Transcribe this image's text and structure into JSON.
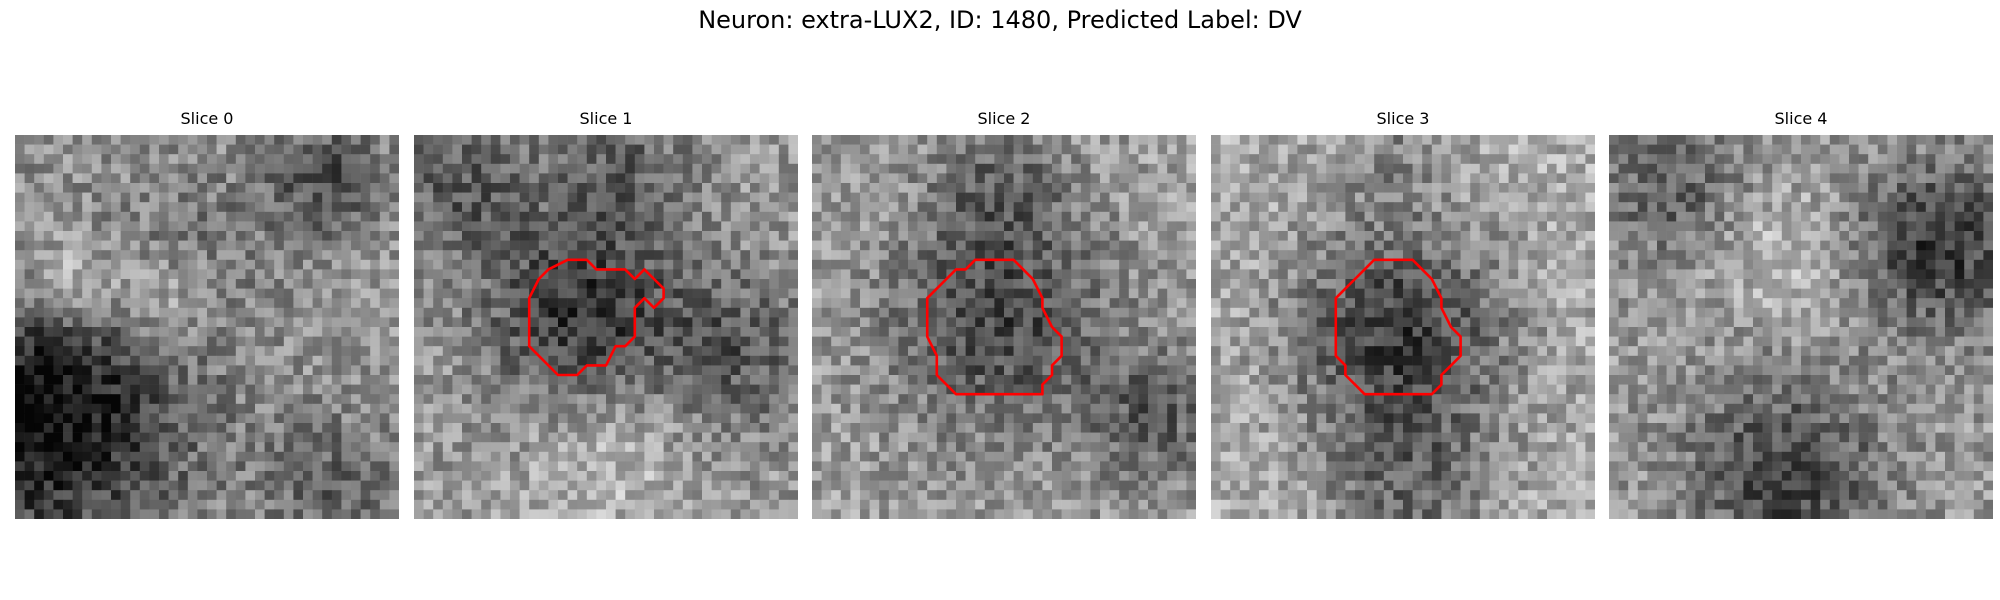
{
  "figure": {
    "title": "Neuron: extra-LUX2, ID: 1480, Predicted Label: DV"
  },
  "panels": [
    {
      "title": "Slice 0",
      "has_contour": false,
      "features": [
        {
          "cx": 3,
          "cy": 28,
          "r": 10,
          "d": -0.55
        },
        {
          "cx": 20,
          "cy": 10,
          "r": 6,
          "d": -0.1
        },
        {
          "cx": 15,
          "cy": 17,
          "r": 4,
          "d": 0.2
        },
        {
          "cx": 5,
          "cy": 15,
          "r": 4,
          "d": 0.3
        },
        {
          "cx": 32,
          "cy": 4,
          "r": 4,
          "d": -0.3
        },
        {
          "cx": 33,
          "cy": 36,
          "r": 5,
          "d": -0.2
        }
      ],
      "base": 0.58,
      "seed": 11
    },
    {
      "title": "Slice 1",
      "has_contour": true,
      "contour_color": "#ff0000",
      "features": [
        {
          "cx": 17,
          "cy": 18,
          "r": 7,
          "d": -0.4
        },
        {
          "cx": 4,
          "cy": 4,
          "r": 6,
          "d": -0.25
        },
        {
          "cx": 22,
          "cy": 3,
          "r": 5,
          "d": -0.2
        },
        {
          "cx": 33,
          "cy": 22,
          "r": 6,
          "d": -0.25
        },
        {
          "cx": 20,
          "cy": 33,
          "r": 6,
          "d": 0.15
        }
      ],
      "base": 0.6,
      "seed": 23
    },
    {
      "title": "Slice 2",
      "has_contour": true,
      "contour_color": "#ff0000",
      "features": [
        {
          "cx": 19,
          "cy": 19,
          "r": 8,
          "d": -0.35
        },
        {
          "cx": 19,
          "cy": 5,
          "r": 5,
          "d": -0.2
        },
        {
          "cx": 35,
          "cy": 29,
          "r": 5,
          "d": -0.25
        }
      ],
      "base": 0.62,
      "seed": 37
    },
    {
      "title": "Slice 3",
      "has_contour": true,
      "contour_color": "#ff0000",
      "features": [
        {
          "cx": 19,
          "cy": 20,
          "r": 8,
          "d": -0.45
        },
        {
          "cx": 20,
          "cy": 36,
          "r": 6,
          "d": -0.25
        },
        {
          "cx": 18,
          "cy": 2,
          "r": 4,
          "d": -0.15
        }
      ],
      "base": 0.68,
      "seed": 41
    },
    {
      "title": "Slice 4",
      "has_contour": false,
      "features": [
        {
          "cx": 34,
          "cy": 11,
          "r": 6,
          "d": -0.4
        },
        {
          "cx": 18,
          "cy": 35,
          "r": 7,
          "d": -0.35
        },
        {
          "cx": 6,
          "cy": 5,
          "r": 5,
          "d": -0.25
        },
        {
          "cx": 18,
          "cy": 12,
          "r": 5,
          "d": 0.15
        }
      ],
      "base": 0.6,
      "seed": 53
    }
  ]
}
